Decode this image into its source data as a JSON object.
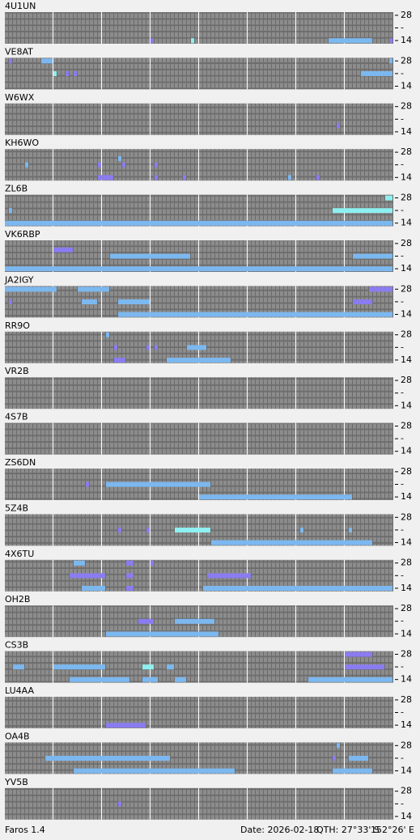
{
  "band_labels": [
    "28",
    "-",
    "14"
  ],
  "level_colors": [
    "#8a7cf0",
    "#7cb8f0",
    "#8ef0f0",
    "#a8f0a0"
  ],
  "panels": [
    {
      "station": "4U1UN",
      "runs": [
        [
          4,
          36,
          36,
          1
        ],
        [
          4,
          46,
          46,
          3
        ],
        [
          4,
          80,
          90,
          2
        ],
        [
          4,
          95,
          95,
          1
        ]
      ]
    },
    {
      "station": "VE8AT",
      "runs": [
        [
          0,
          1,
          1,
          1
        ],
        [
          0,
          9,
          11,
          2
        ],
        [
          0,
          95,
          95,
          2
        ],
        [
          2,
          12,
          12,
          3
        ],
        [
          2,
          15,
          15,
          1
        ],
        [
          2,
          17,
          17,
          1
        ],
        [
          2,
          88,
          95,
          2
        ]
      ]
    },
    {
      "station": "W6WX",
      "runs": [
        [
          3,
          82,
          82,
          1
        ]
      ]
    },
    {
      "station": "KH6WO",
      "runs": [
        [
          1,
          28,
          28,
          2
        ],
        [
          2,
          5,
          5,
          2
        ],
        [
          2,
          23,
          23,
          1
        ],
        [
          2,
          29,
          29,
          1
        ],
        [
          2,
          37,
          37,
          1
        ],
        [
          4,
          23,
          26,
          1
        ],
        [
          4,
          37,
          37,
          1
        ],
        [
          4,
          44,
          44,
          1
        ],
        [
          4,
          70,
          70,
          2
        ],
        [
          4,
          77,
          77,
          1
        ]
      ]
    },
    {
      "station": "ZL6B",
      "runs": [
        [
          0,
          94,
          95,
          3
        ],
        [
          2,
          1,
          1,
          2
        ],
        [
          2,
          81,
          95,
          3
        ],
        [
          4,
          0,
          95,
          2
        ]
      ]
    },
    {
      "station": "VK6RBP",
      "runs": [
        [
          1,
          12,
          16,
          1
        ],
        [
          2,
          26,
          45,
          2
        ],
        [
          2,
          86,
          95,
          2
        ],
        [
          4,
          0,
          95,
          2
        ]
      ]
    },
    {
      "station": "JA2IGY",
      "runs": [
        [
          0,
          0,
          12,
          2
        ],
        [
          0,
          18,
          25,
          2
        ],
        [
          0,
          90,
          95,
          1
        ],
        [
          2,
          1,
          1,
          1
        ],
        [
          2,
          19,
          22,
          2
        ],
        [
          2,
          28,
          35,
          2
        ],
        [
          2,
          86,
          90,
          1
        ],
        [
          4,
          28,
          95,
          2
        ]
      ]
    },
    {
      "station": "RR9O",
      "runs": [
        [
          0,
          25,
          25,
          2
        ],
        [
          2,
          27,
          27,
          1
        ],
        [
          2,
          35,
          35,
          1
        ],
        [
          2,
          37,
          37,
          1
        ],
        [
          2,
          45,
          49,
          2
        ],
        [
          4,
          27,
          29,
          1
        ],
        [
          4,
          40,
          55,
          2
        ]
      ]
    },
    {
      "station": "VR2B",
      "runs": []
    },
    {
      "station": "4S7B",
      "runs": []
    },
    {
      "station": "ZS6DN",
      "runs": [
        [
          2,
          20,
          20,
          1
        ],
        [
          2,
          25,
          50,
          2
        ],
        [
          4,
          48,
          85,
          2
        ]
      ]
    },
    {
      "station": "5Z4B",
      "runs": [
        [
          2,
          28,
          28,
          1
        ],
        [
          2,
          35,
          35,
          1
        ],
        [
          2,
          42,
          50,
          3
        ],
        [
          2,
          73,
          73,
          2
        ],
        [
          2,
          85,
          85,
          2
        ],
        [
          4,
          51,
          90,
          2
        ]
      ]
    },
    {
      "station": "4X6TU",
      "runs": [
        [
          0,
          17,
          19,
          2
        ],
        [
          0,
          30,
          31,
          1
        ],
        [
          0,
          36,
          36,
          1
        ],
        [
          2,
          16,
          24,
          1
        ],
        [
          2,
          30,
          31,
          1
        ],
        [
          2,
          50,
          60,
          1
        ],
        [
          4,
          19,
          24,
          2
        ],
        [
          4,
          30,
          31,
          1
        ],
        [
          4,
          49,
          95,
          2
        ]
      ]
    },
    {
      "station": "OH2B",
      "runs": [
        [
          2,
          33,
          36,
          1
        ],
        [
          2,
          42,
          51,
          2
        ],
        [
          4,
          25,
          52,
          2
        ]
      ]
    },
    {
      "station": "CS3B",
      "runs": [
        [
          0,
          84,
          90,
          1
        ],
        [
          2,
          2,
          4,
          2
        ],
        [
          2,
          12,
          24,
          2
        ],
        [
          2,
          34,
          36,
          3
        ],
        [
          2,
          40,
          41,
          2
        ],
        [
          2,
          84,
          93,
          1
        ],
        [
          4,
          16,
          30,
          2
        ],
        [
          4,
          34,
          37,
          2
        ],
        [
          4,
          42,
          44,
          2
        ],
        [
          4,
          75,
          95,
          2
        ]
      ]
    },
    {
      "station": "LU4AA",
      "runs": [
        [
          4,
          25,
          34,
          1
        ]
      ]
    },
    {
      "station": "OA4B",
      "runs": [
        [
          0,
          82,
          82,
          2
        ],
        [
          2,
          10,
          40,
          2
        ],
        [
          2,
          81,
          81,
          1
        ],
        [
          2,
          85,
          89,
          2
        ],
        [
          4,
          17,
          56,
          2
        ],
        [
          4,
          81,
          90,
          2
        ]
      ]
    },
    {
      "station": "YV5B",
      "runs": [
        [
          2,
          28,
          28,
          1
        ]
      ]
    }
  ],
  "footer": {
    "app": "Faros 1.4",
    "date": "Date: 2026-02-18",
    "lat": "QTH: 27°33' S",
    "lon": "152°26' E"
  }
}
